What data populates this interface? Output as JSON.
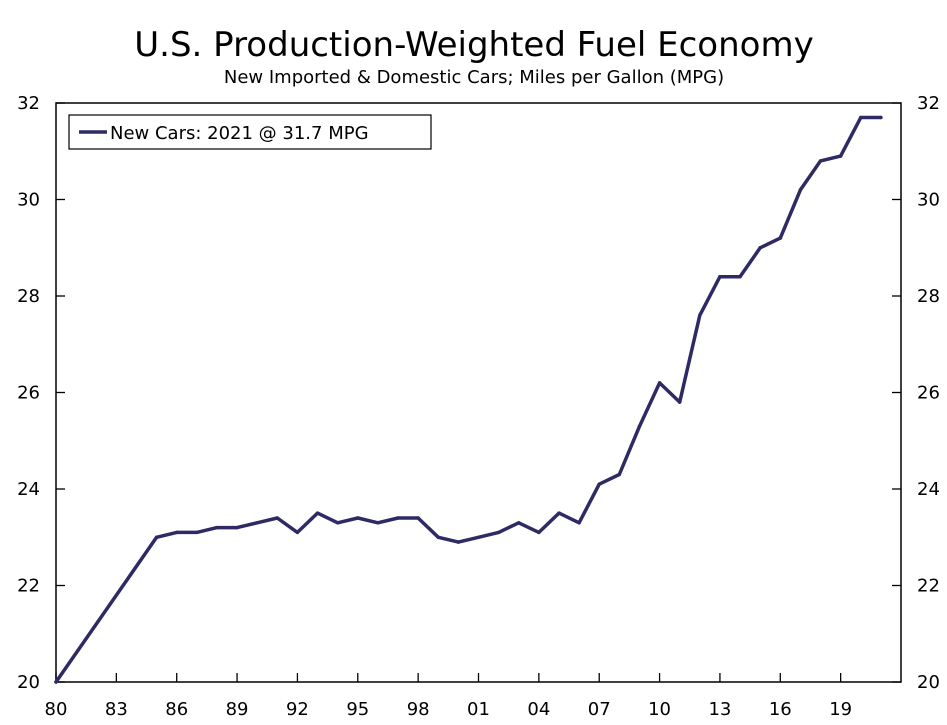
{
  "chart_data": {
    "type": "line",
    "title": "U.S. Production-Weighted Fuel Economy",
    "subtitle": "New Imported & Domestic Cars; Miles per Gallon (MPG)",
    "xlabel": "",
    "ylabel": "",
    "xlim": [
      1980,
      2022
    ],
    "ylim": [
      20,
      32
    ],
    "x_ticks": [
      1980,
      1983,
      1986,
      1989,
      1992,
      1995,
      1998,
      2001,
      2004,
      2007,
      2010,
      2013,
      2016,
      2019
    ],
    "x_tick_labels": [
      "80",
      "83",
      "86",
      "89",
      "92",
      "95",
      "98",
      "01",
      "04",
      "07",
      "10",
      "13",
      "16",
      "19"
    ],
    "y_ticks": [
      20,
      22,
      24,
      26,
      28,
      30,
      32
    ],
    "y_tick_labels": [
      "20",
      "22",
      "24",
      "26",
      "28",
      "30",
      "32"
    ],
    "grid": false,
    "legend_position": "top-left",
    "series": [
      {
        "name": "New Cars: 2021 @ 31.7 MPG",
        "color": "#2e2a63",
        "x": [
          1980,
          1985,
          1986,
          1987,
          1988,
          1989,
          1990,
          1991,
          1992,
          1993,
          1994,
          1995,
          1996,
          1997,
          1998,
          1999,
          2000,
          2001,
          2002,
          2003,
          2004,
          2005,
          2006,
          2007,
          2008,
          2009,
          2010,
          2011,
          2012,
          2013,
          2014,
          2015,
          2016,
          2017,
          2018,
          2019,
          2020,
          2021
        ],
        "values": [
          20.0,
          23.0,
          23.1,
          23.1,
          23.2,
          23.2,
          23.3,
          23.4,
          23.1,
          23.5,
          23.3,
          23.4,
          23.3,
          23.4,
          23.4,
          23.0,
          22.9,
          23.0,
          23.1,
          23.3,
          23.1,
          23.5,
          23.3,
          24.1,
          24.3,
          25.3,
          26.2,
          25.8,
          27.6,
          28.4,
          28.4,
          29.0,
          29.2,
          30.2,
          30.8,
          30.9,
          31.7,
          31.7
        ]
      }
    ]
  }
}
